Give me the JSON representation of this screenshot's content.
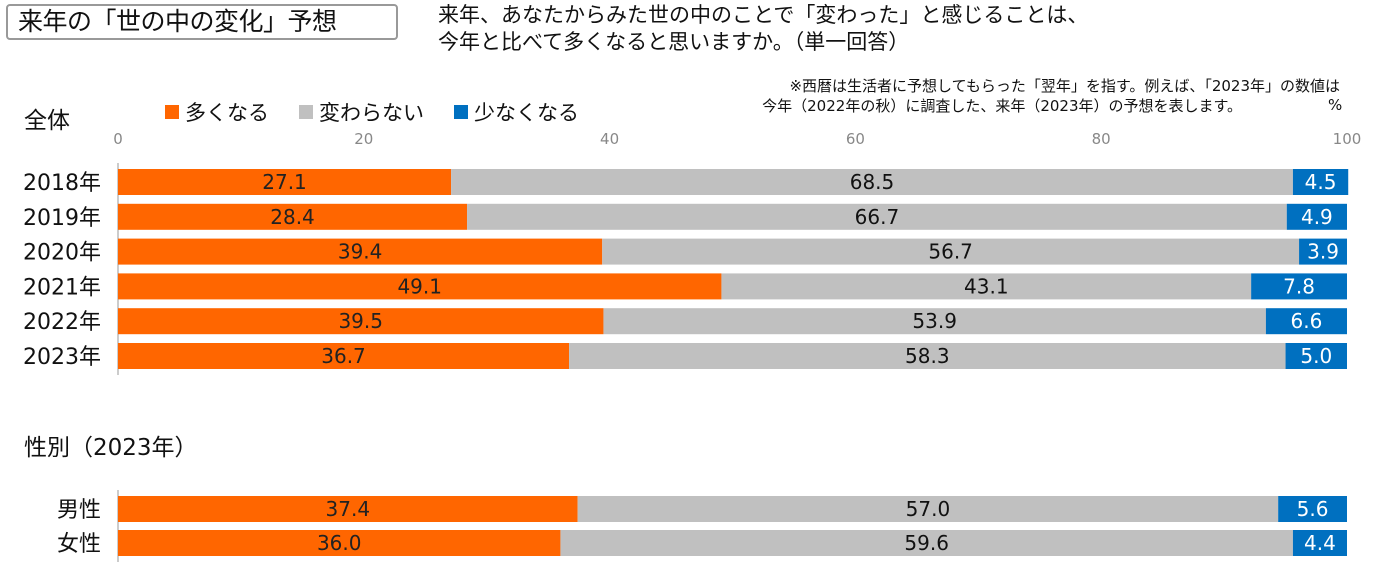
{
  "header": {
    "title": "来年の「世の中の変化」予想",
    "question_line1": "来年、あなたからみた世の中のことで「変わった」と感じることは、",
    "question_line2": "今年と比べて多くなると思いますか。（単一回答）"
  },
  "note": {
    "line1": "※西暦は生活者に予想してもらった「翌年」を指す。例えば、「2023年」の数値は",
    "line2": "今年（2022年の秋）に調査した、来年（2023年）の予想を表します。",
    "unit": "%"
  },
  "colors": {
    "more": "#ff6600",
    "same": "#c0c0c0",
    "less": "#0070c0",
    "axis": "#999999"
  },
  "chart_data": [
    {
      "type": "bar",
      "orientation": "horizontal",
      "stacked": true,
      "title": "全体",
      "categories": [
        "2018年",
        "2019年",
        "2020年",
        "2021年",
        "2022年",
        "2023年"
      ],
      "series": [
        {
          "name": "多くなる",
          "values": [
            27.1,
            28.4,
            39.4,
            49.1,
            39.5,
            36.7
          ]
        },
        {
          "name": "変わらない",
          "values": [
            68.5,
            66.7,
            56.7,
            43.1,
            53.9,
            58.3
          ]
        },
        {
          "name": "少なくなる",
          "values": [
            4.5,
            4.9,
            3.9,
            7.8,
            6.6,
            5.0
          ]
        }
      ],
      "xlim": [
        0,
        100
      ],
      "xticks": [
        0,
        20,
        40,
        60,
        80,
        100
      ],
      "legend": "top",
      "grid": false
    },
    {
      "type": "bar",
      "orientation": "horizontal",
      "stacked": true,
      "title": "性別（2023年）",
      "categories": [
        "男性",
        "女性"
      ],
      "series": [
        {
          "name": "多くなる",
          "values": [
            37.4,
            36.0
          ]
        },
        {
          "name": "変わらない",
          "values": [
            57.0,
            59.6
          ]
        },
        {
          "name": "少なくなる",
          "values": [
            5.6,
            4.4
          ]
        }
      ],
      "xlim": [
        0,
        100
      ],
      "legend": "none",
      "grid": false
    }
  ]
}
